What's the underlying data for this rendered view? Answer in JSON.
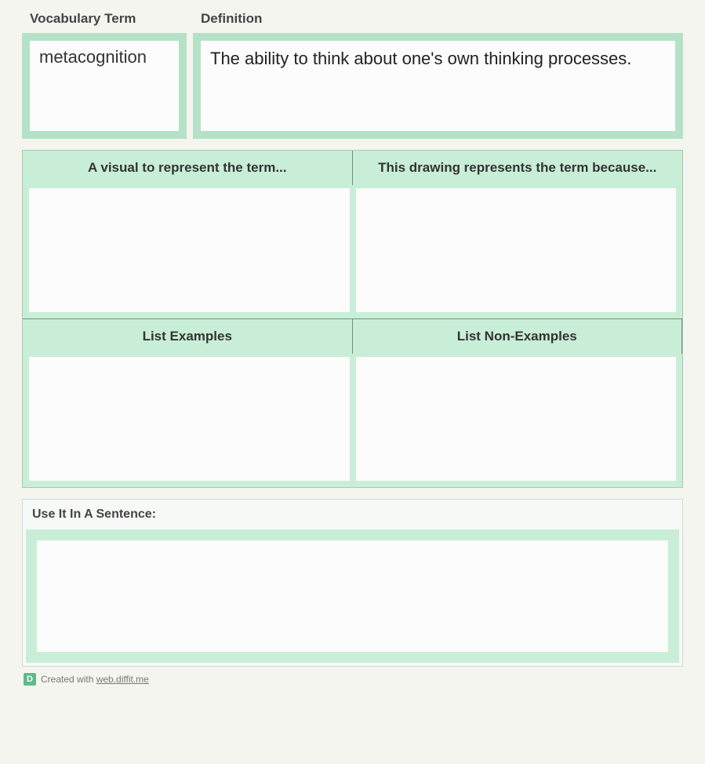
{
  "colors": {
    "frame_green": "#b5e2c7",
    "grid_green": "#c9eed7",
    "grid_line": "#6f8f7d",
    "page_bg": "#f5f5f0",
    "box_bg": "#fbfcfb",
    "text": "#333333",
    "footer_badge": "#5fb98a"
  },
  "top": {
    "term_label": "Vocabulary Term",
    "term_value": "metacognition",
    "definition_label": "Definition",
    "definition_value": "The ability to think about one's own thinking processes."
  },
  "grid": {
    "visual_header": "A visual to represent the term...",
    "explain_header": "This drawing represents the term because...",
    "examples_header": "List Examples",
    "nonexamples_header": "List Non-Examples",
    "visual_value": "",
    "explain_value": "",
    "examples_value": "",
    "nonexamples_value": ""
  },
  "sentence": {
    "label": "Use It In A Sentence:",
    "value": ""
  },
  "footer": {
    "badge_letter": "D",
    "prefix": "Created with ",
    "link_text": "web.diffit.me"
  }
}
